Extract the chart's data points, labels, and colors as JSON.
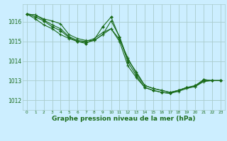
{
  "background_color": "#cceeff",
  "grid_color": "#aacccc",
  "line_color": "#1a6b1a",
  "marker_color": "#1a6b1a",
  "xlabel": "Graphe pression niveau de la mer (hPa)",
  "xlabel_fontsize": 6.5,
  "ylim": [
    1011.5,
    1016.9
  ],
  "xlim": [
    -0.5,
    23.5
  ],
  "yticks": [
    1012,
    1013,
    1014,
    1015,
    1016
  ],
  "xticks": [
    0,
    1,
    2,
    3,
    4,
    5,
    6,
    7,
    8,
    9,
    10,
    11,
    12,
    13,
    14,
    15,
    16,
    17,
    18,
    19,
    20,
    21,
    22,
    23
  ],
  "line1_x": [
    0,
    1,
    2,
    3,
    4,
    5,
    6,
    7,
    8,
    9,
    10,
    11,
    12,
    13,
    14,
    15,
    16,
    17,
    18,
    19,
    20,
    21,
    22,
    23
  ],
  "line1_y": [
    1016.4,
    1016.35,
    1016.1,
    1015.85,
    1015.65,
    1015.25,
    1015.05,
    1015.0,
    1015.15,
    1015.45,
    1015.65,
    1015.1,
    1014.15,
    1013.35,
    1012.75,
    1012.6,
    1012.5,
    1012.4,
    1012.5,
    1012.65,
    1012.7,
    1012.95,
    1013.0,
    1013.0
  ],
  "line2_x": [
    0,
    1,
    2,
    3,
    4,
    5,
    6,
    7,
    8,
    9,
    10,
    11,
    12,
    13,
    14,
    15,
    16,
    17,
    18,
    19,
    20,
    21,
    22,
    23
  ],
  "line2_y": [
    1016.4,
    1016.35,
    1016.15,
    1016.05,
    1015.9,
    1015.35,
    1015.15,
    1015.05,
    1015.05,
    1015.35,
    1016.05,
    1015.25,
    1014.05,
    1013.45,
    1012.75,
    1012.6,
    1012.5,
    1012.4,
    1012.5,
    1012.65,
    1012.7,
    1013.05,
    1013.0,
    1013.0
  ],
  "line3_x": [
    0,
    1,
    2,
    3,
    4,
    5,
    6,
    7,
    8,
    9,
    10,
    11,
    12,
    13,
    14,
    15,
    16,
    17,
    18,
    19,
    20,
    21,
    22,
    23
  ],
  "line3_y": [
    1016.4,
    1016.25,
    1016.05,
    1015.75,
    1015.55,
    1015.2,
    1015.0,
    1014.9,
    1015.1,
    1015.75,
    1016.25,
    1015.2,
    1013.95,
    1013.25,
    1012.65,
    1012.5,
    1012.4,
    1012.35,
    1012.5,
    1012.65,
    1012.75,
    1013.05,
    1013.0,
    1013.0
  ],
  "line4_x": [
    0,
    1,
    2,
    3,
    4,
    5,
    6,
    7,
    8,
    9,
    10,
    11,
    12,
    13,
    14,
    15,
    16,
    17,
    18,
    19,
    20,
    21,
    22,
    23
  ],
  "line4_y": [
    1016.4,
    1016.15,
    1015.85,
    1015.65,
    1015.35,
    1015.15,
    1015.0,
    1014.95,
    1015.05,
    1015.35,
    1015.65,
    1015.0,
    1013.75,
    1013.15,
    1012.65,
    1012.5,
    1012.4,
    1012.35,
    1012.45,
    1012.6,
    1012.7,
    1013.0,
    1013.0,
    1013.0
  ]
}
